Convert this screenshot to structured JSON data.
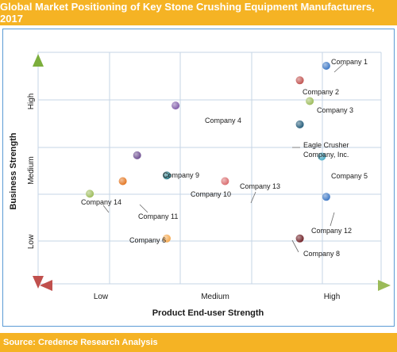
{
  "title": "Global Market Positioning of Key Stone Crushing Equipment Manufacturers, 2017",
  "source": "Source: Credence Research Analysis",
  "colors": {
    "banner": "#f5b324",
    "grid": "#c6d4e6",
    "y_arrow": "#7cae3c",
    "x_arrow_left": "#c0504d",
    "x_arrow_right": "#9bbb59"
  },
  "chart_data": {
    "type": "scatter",
    "xlabel": "Product End-user Strength",
    "ylabel": "Business Strength",
    "x_ticks": [
      "Low",
      "Medium",
      "High"
    ],
    "y_ticks": [
      "Low",
      "Medium",
      "High"
    ],
    "xlim": [
      0,
      3
    ],
    "ylim": [
      0,
      3
    ],
    "grid": true,
    "points": [
      {
        "name": "Company 1",
        "x": 2.62,
        "y": 2.78,
        "color": "#3a76c4"
      },
      {
        "name": "Company 2",
        "x": 2.38,
        "y": 2.55,
        "color": "#c0504d"
      },
      {
        "name": "Company 3",
        "x": 2.47,
        "y": 2.22,
        "color": "#9bbb59"
      },
      {
        "name": "Company 4",
        "x": 1.25,
        "y": 2.15,
        "color": "#7f5aa8"
      },
      {
        "name": "Eagle Crusher Company, Inc.",
        "x": 2.38,
        "y": 1.85,
        "color": "#215a78"
      },
      {
        "name": "Company 9",
        "x": 0.9,
        "y": 1.36,
        "color": "#6a4a8e"
      },
      {
        "name": "Company 5",
        "x": 2.58,
        "y": 1.34,
        "color": "#4bacc6"
      },
      {
        "name": "Company 10",
        "x": 1.17,
        "y": 1.04,
        "color": "#2b7c88"
      },
      {
        "name": "Company 13",
        "x": 1.7,
        "y": 0.95,
        "color": "#d9696b"
      },
      {
        "name": "Company 14",
        "x": 0.47,
        "y": 0.75,
        "color": "#9bbb59"
      },
      {
        "name": "Company 11",
        "x": 0.77,
        "y": 0.95,
        "color": "#e3741e"
      },
      {
        "name": "Company 12",
        "x": 2.62,
        "y": 0.7,
        "color": "#3a76c4"
      },
      {
        "name": "Company 6",
        "x": 1.17,
        "y": 0.04,
        "color": "#f5a84c"
      },
      {
        "name": "Company 8",
        "x": 2.38,
        "y": 0.04,
        "color": "#6d1c22"
      }
    ]
  }
}
